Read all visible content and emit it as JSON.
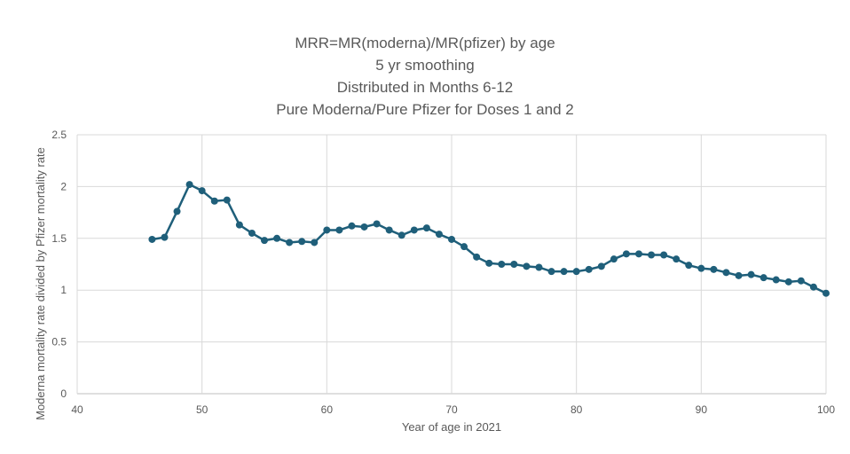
{
  "chart_data": {
    "type": "line",
    "title_lines": [
      "MRR=MR(moderna)/MR(pfizer) by age",
      "5 yr smoothing",
      "Distributed in Months 6-12",
      "Pure Moderna/Pure Pfizer for Doses 1 and 2"
    ],
    "xlabel": "Year of age in 2021",
    "ylabel": "Moderna mortality rate divided by Pfizer mortality rate",
    "xlim": [
      40,
      100
    ],
    "ylim": [
      0,
      2.5
    ],
    "x_ticks": [
      40,
      50,
      60,
      70,
      80,
      90,
      100
    ],
    "y_ticks": [
      "0",
      "0.5",
      "1",
      "1.5",
      "2",
      "2.5"
    ],
    "grid": true,
    "color": "#1f5f7a",
    "series": [
      {
        "x": [
          46,
          47,
          48,
          49,
          50,
          51,
          52,
          53,
          54,
          55,
          56,
          57,
          58,
          59,
          60,
          61,
          62,
          63,
          64,
          65,
          66,
          67,
          68,
          69,
          70,
          71,
          72,
          73,
          74,
          75,
          76,
          77,
          78,
          79,
          80,
          81,
          82,
          83,
          84,
          85,
          86,
          87,
          88,
          89,
          90,
          91,
          92,
          93,
          94,
          95,
          96,
          97,
          98,
          99,
          100
        ],
        "y": [
          1.49,
          1.51,
          1.76,
          2.02,
          1.96,
          1.86,
          1.87,
          1.63,
          1.55,
          1.48,
          1.5,
          1.46,
          1.47,
          1.46,
          1.58,
          1.58,
          1.62,
          1.61,
          1.64,
          1.58,
          1.53,
          1.58,
          1.6,
          1.54,
          1.49,
          1.42,
          1.32,
          1.26,
          1.25,
          1.25,
          1.23,
          1.22,
          1.18,
          1.18,
          1.18,
          1.2,
          1.23,
          1.3,
          1.35,
          1.35,
          1.34,
          1.34,
          1.3,
          1.24,
          1.21,
          1.2,
          1.17,
          1.14,
          1.15,
          1.12,
          1.1,
          1.08,
          1.09,
          1.03,
          0.97
        ]
      }
    ]
  }
}
